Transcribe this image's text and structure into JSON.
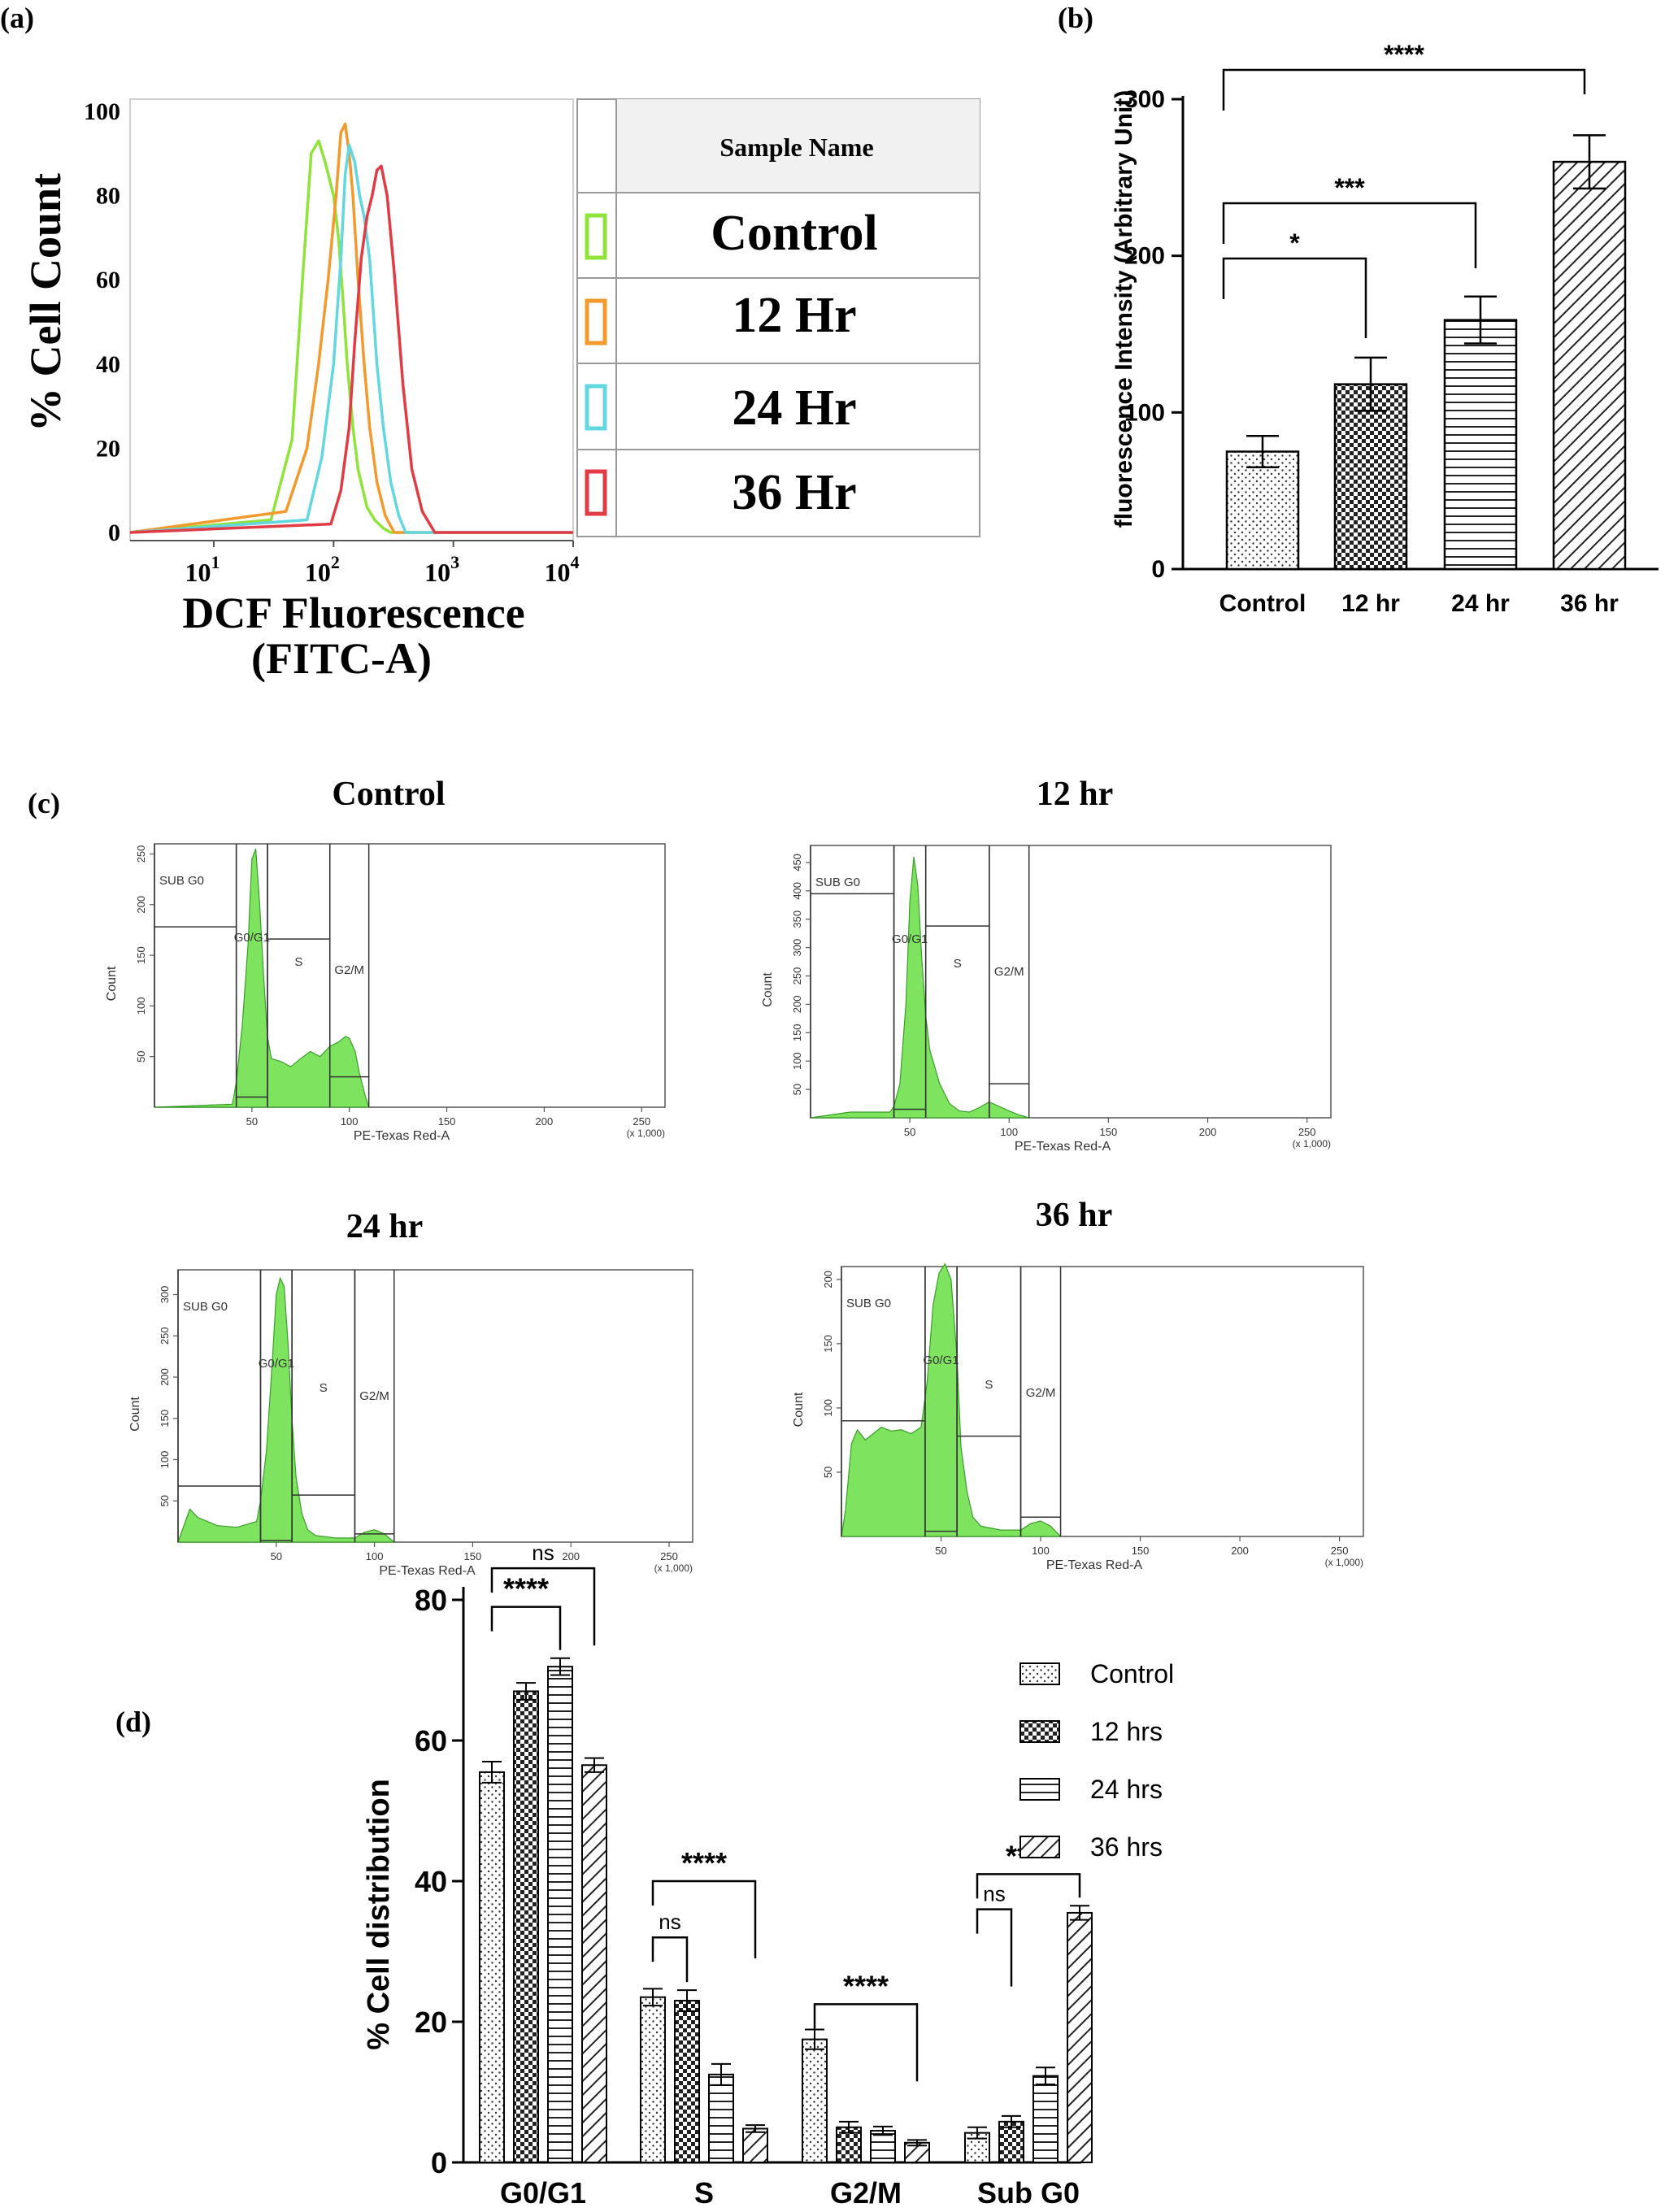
{
  "chart_data": [
    {
      "panel": "(a)",
      "type": "line",
      "ylabel": "% Cell Count",
      "xlabel_line1": "DCF Fluorescence",
      "xlabel_line2": "(FITC-A)",
      "xscale": "log",
      "xlim": [
        2,
        10000
      ],
      "ylim": [
        0,
        100
      ],
      "yticks": [
        "0",
        "20",
        "40",
        "60",
        "80",
        "100"
      ],
      "xticks": [
        {
          "base": "10",
          "exp": "1",
          "value": 10
        },
        {
          "base": "10",
          "exp": "2",
          "value": 100
        },
        {
          "base": "10",
          "exp": "3",
          "value": 1000
        },
        {
          "base": "10",
          "exp": "4",
          "value": 10000
        }
      ],
      "legend_header": "Sample Name",
      "series": [
        {
          "name": "Control",
          "color": "#8fe33a",
          "x": [
            30,
            45,
            55,
            65,
            75,
            85,
            100,
            110,
            120,
            130,
            145,
            160,
            190,
            220,
            260,
            300
          ],
          "y": [
            3,
            22,
            60,
            90,
            93,
            88,
            80,
            70,
            55,
            40,
            25,
            15,
            6,
            3,
            1,
            0
          ]
        },
        {
          "name": "12 Hr",
          "color": "#f29a2e",
          "x": [
            40,
            60,
            75,
            90,
            105,
            115,
            125,
            135,
            145,
            160,
            180,
            200,
            230,
            270,
            320
          ],
          "y": [
            5,
            20,
            40,
            60,
            80,
            95,
            97,
            90,
            80,
            60,
            40,
            25,
            12,
            4,
            0
          ]
        },
        {
          "name": "24 Hr",
          "color": "#63d7e0",
          "x": [
            60,
            80,
            100,
            115,
            125,
            135,
            150,
            165,
            180,
            200,
            230,
            260,
            300,
            350,
            400
          ],
          "y": [
            3,
            18,
            40,
            65,
            85,
            92,
            88,
            80,
            75,
            65,
            40,
            25,
            12,
            4,
            0
          ]
        },
        {
          "name": "36 Hr",
          "color": "#e03c45",
          "x": [
            95,
            115,
            135,
            150,
            170,
            190,
            210,
            230,
            250,
            280,
            320,
            380,
            450,
            550,
            700
          ],
          "y": [
            2,
            10,
            25,
            45,
            65,
            75,
            80,
            86,
            87,
            80,
            62,
            35,
            15,
            5,
            0
          ]
        }
      ]
    },
    {
      "panel": "(b)",
      "type": "bar",
      "ylabel": "fluorescence Intensity (Arbitrary Unit)",
      "categories": [
        "Control",
        "12 hr",
        "24 hr",
        "36 hr"
      ],
      "values": [
        75,
        118,
        159,
        260
      ],
      "errors": [
        10,
        17,
        15,
        17
      ],
      "patterns": [
        "dots",
        "checker",
        "hlines",
        "diag"
      ],
      "ylim": [
        0,
        300
      ],
      "yticks": [
        "0",
        "100",
        "200",
        "300"
      ],
      "significance": [
        {
          "from": 0,
          "to": 1,
          "label": "*"
        },
        {
          "from": 0,
          "to": 2,
          "label": "***"
        },
        {
          "from": 0,
          "to": 3,
          "label": "****"
        }
      ]
    },
    {
      "panel": "(c)",
      "type": "area",
      "xlabel": "PE-Texas Red-A",
      "multiplier": "(x 1,000)",
      "ylabel": "Count",
      "xticks": [
        "50",
        "100",
        "150",
        "200",
        "250"
      ],
      "gate_labels": [
        "SUB G0",
        "G0/G1",
        "S",
        "G2/M"
      ],
      "histograms": [
        {
          "title": "Control",
          "ymax": 260,
          "yticks": [
            "50",
            "100",
            "150",
            "200",
            "250"
          ],
          "x": [
            0,
            40,
            42,
            45,
            48,
            50,
            52,
            54,
            56,
            58,
            60,
            65,
            70,
            75,
            80,
            85,
            90,
            95,
            98,
            100,
            103,
            105,
            108,
            110
          ],
          "y": [
            0,
            3,
            25,
            80,
            160,
            245,
            255,
            200,
            130,
            70,
            48,
            45,
            40,
            48,
            55,
            50,
            60,
            65,
            70,
            68,
            55,
            35,
            12,
            0
          ],
          "gate_levels": [
            178,
            10,
            166,
            30
          ]
        },
        {
          "title": "12 hr",
          "ymax": 480,
          "yticks": [
            "50",
            "100",
            "150",
            "200",
            "250",
            "300",
            "350",
            "400",
            "450"
          ],
          "x": [
            0,
            20,
            40,
            42,
            45,
            48,
            50,
            52,
            54,
            56,
            58,
            60,
            65,
            70,
            75,
            80,
            85,
            90,
            95,
            100,
            105,
            110
          ],
          "y": [
            0,
            10,
            10,
            20,
            60,
            200,
            380,
            460,
            410,
            280,
            180,
            120,
            60,
            25,
            12,
            10,
            18,
            28,
            20,
            12,
            5,
            0
          ],
          "gate_levels": [
            395,
            15,
            338,
            60
          ]
        },
        {
          "title": "24 hr",
          "ymax": 330,
          "yticks": [
            "50",
            "100",
            "150",
            "200",
            "250",
            "300"
          ],
          "x": [
            0,
            3,
            6,
            10,
            20,
            30,
            40,
            42,
            45,
            48,
            50,
            52,
            54,
            56,
            58,
            60,
            63,
            66,
            70,
            80,
            90,
            95,
            100,
            105,
            110
          ],
          "y": [
            0,
            20,
            40,
            30,
            20,
            18,
            25,
            50,
            110,
            220,
            300,
            320,
            310,
            240,
            150,
            80,
            35,
            15,
            8,
            5,
            5,
            12,
            15,
            10,
            0
          ],
          "gate_levels": [
            68,
            2,
            57,
            10
          ]
        },
        {
          "title": "36 hr",
          "ymax": 210,
          "yticks": [
            "50",
            "100",
            "150",
            "200"
          ],
          "x": [
            0,
            2,
            5,
            8,
            12,
            16,
            20,
            25,
            30,
            35,
            40,
            43,
            46,
            49,
            52,
            55,
            58,
            60,
            63,
            66,
            70,
            80,
            90,
            95,
            100,
            105,
            110
          ],
          "y": [
            0,
            20,
            72,
            83,
            75,
            80,
            85,
            82,
            83,
            80,
            85,
            120,
            180,
            205,
            212,
            200,
            140,
            70,
            35,
            15,
            8,
            5,
            5,
            10,
            12,
            8,
            0
          ],
          "gate_levels": [
            90,
            4,
            78,
            15
          ]
        }
      ]
    },
    {
      "panel": "(d)",
      "type": "bar",
      "ylabel": "% Cell distribution",
      "categories": [
        "G0/G1",
        "S",
        "G2/M",
        "Sub G0"
      ],
      "ylim": [
        0,
        80
      ],
      "yticks": [
        "0",
        "20",
        "40",
        "60",
        "80"
      ],
      "series": [
        {
          "name": "Control",
          "pattern": "dots",
          "values": [
            55.5,
            23.5,
            17.5,
            4.2
          ],
          "errors": [
            1.5,
            1.2,
            1.4,
            0.8
          ]
        },
        {
          "name": "12 hrs",
          "pattern": "checker",
          "values": [
            67,
            23,
            5,
            5.8
          ],
          "errors": [
            1.2,
            1.5,
            0.8,
            0.8
          ]
        },
        {
          "name": "24 hrs",
          "pattern": "hlines",
          "values": [
            70.5,
            12.5,
            4.5,
            12.3
          ],
          "errors": [
            1.2,
            1.5,
            0.6,
            1.2
          ]
        },
        {
          "name": "36 hrs",
          "pattern": "diag",
          "values": [
            56.5,
            4.8,
            2.8,
            35.5
          ],
          "errors": [
            1.0,
            0.5,
            0.4,
            1.0
          ]
        }
      ],
      "significance": [
        {
          "group": 0,
          "from": 0,
          "to": 2,
          "label": "****",
          "level": 79
        },
        {
          "group": 0,
          "from": 0,
          "to": 3,
          "label": "ns",
          "level": 84.5
        },
        {
          "group": 1,
          "from": 0,
          "to": 1,
          "label": "ns",
          "level": 32
        },
        {
          "group": 1,
          "from": 0,
          "to": 3,
          "label": "****",
          "level": 40
        },
        {
          "group": 2,
          "from": 0,
          "to": 3,
          "label": "****",
          "level": 22.5
        },
        {
          "group": 3,
          "from": 0,
          "to": 1,
          "label": "ns",
          "level": 36
        },
        {
          "group": 3,
          "from": 0,
          "to": 3,
          "label": "****",
          "level": 41
        }
      ]
    }
  ]
}
